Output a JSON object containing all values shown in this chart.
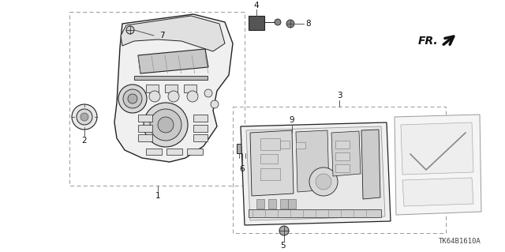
{
  "bg_color": "#ffffff",
  "diagram_code": "TK64B1610A",
  "line_color": "#333333",
  "light_gray": "#d8d8d8",
  "mid_gray": "#aaaaaa",
  "dark_line": "#222222",
  "label_color": "#111111",
  "dashed_color": "#888888",
  "fr_color": "#111111",
  "figsize": [
    6.4,
    3.19
  ],
  "dpi": 100
}
